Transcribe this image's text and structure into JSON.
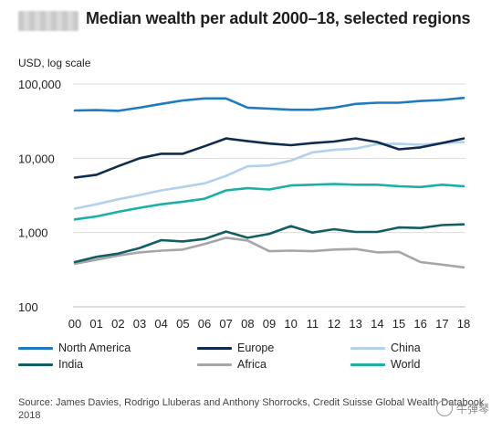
{
  "header": {
    "title": "Median wealth per adult 2000–18, selected regions"
  },
  "chart_data": {
    "type": "line",
    "title": "Median wealth per adult 2000–18, selected regions",
    "ylabel": "USD, log scale",
    "xlabel": "",
    "yscale": "log",
    "ylim": [
      100,
      100000
    ],
    "yticks": [
      100,
      1000,
      10000,
      100000
    ],
    "ytick_labels": [
      "100",
      "1,000",
      "10,000",
      "100,000"
    ],
    "x": [
      "00",
      "01",
      "02",
      "03",
      "04",
      "05",
      "06",
      "07",
      "08",
      "09",
      "10",
      "11",
      "12",
      "13",
      "14",
      "15",
      "16",
      "17",
      "18"
    ],
    "grid": "horizontal",
    "legend_position": "bottom",
    "series": [
      {
        "name": "North America",
        "color": "#1f7bc1",
        "values": [
          44000,
          44500,
          43500,
          48000,
          54000,
          60000,
          64000,
          64000,
          48000,
          46500,
          45000,
          45000,
          48000,
          54000,
          56000,
          56000,
          59000,
          61000,
          65000
        ]
      },
      {
        "name": "Europe",
        "color": "#0f2c4f",
        "values": [
          5500,
          6000,
          7800,
          10000,
          11500,
          11500,
          14500,
          18500,
          17000,
          15800,
          15000,
          16000,
          16800,
          18500,
          16500,
          13200,
          14000,
          16000,
          18500
        ]
      },
      {
        "name": "China",
        "color": "#b3d1ea",
        "values": [
          2100,
          2400,
          2800,
          3200,
          3700,
          4100,
          4600,
          5800,
          7800,
          8000,
          9300,
          12000,
          13000,
          13500,
          15500,
          15700,
          15200,
          16000,
          16500
        ]
      },
      {
        "name": "India",
        "color": "#145d62",
        "values": [
          400,
          470,
          520,
          620,
          790,
          760,
          820,
          1030,
          850,
          960,
          1220,
          1000,
          1110,
          1020,
          1020,
          1170,
          1150,
          1260,
          1290
        ]
      },
      {
        "name": "Africa",
        "color": "#a6a6a6",
        "values": [
          380,
          430,
          490,
          540,
          570,
          590,
          700,
          850,
          780,
          560,
          570,
          560,
          590,
          600,
          540,
          550,
          400,
          370,
          340
        ]
      },
      {
        "name": "World",
        "color": "#1ab0a8",
        "values": [
          1500,
          1650,
          1900,
          2150,
          2400,
          2600,
          2850,
          3700,
          3950,
          3800,
          4300,
          4400,
          4500,
          4400,
          4400,
          4200,
          4100,
          4400,
          4200
        ]
      }
    ]
  },
  "legend": [
    {
      "label": "North America",
      "color": "#1f7bc1"
    },
    {
      "label": "Europe",
      "color": "#0f2c4f"
    },
    {
      "label": "China",
      "color": "#b3d1ea"
    },
    {
      "label": "India",
      "color": "#145d62"
    },
    {
      "label": "Africa",
      "color": "#a6a6a6"
    },
    {
      "label": "World",
      "color": "#1ab0a8"
    }
  ],
  "source": "Source: James Davies, Rodrigo Lluberas and Anthony Shorrocks, Credit Suisse Global Wealth Databook 2018",
  "watermark": "牛弹琴"
}
